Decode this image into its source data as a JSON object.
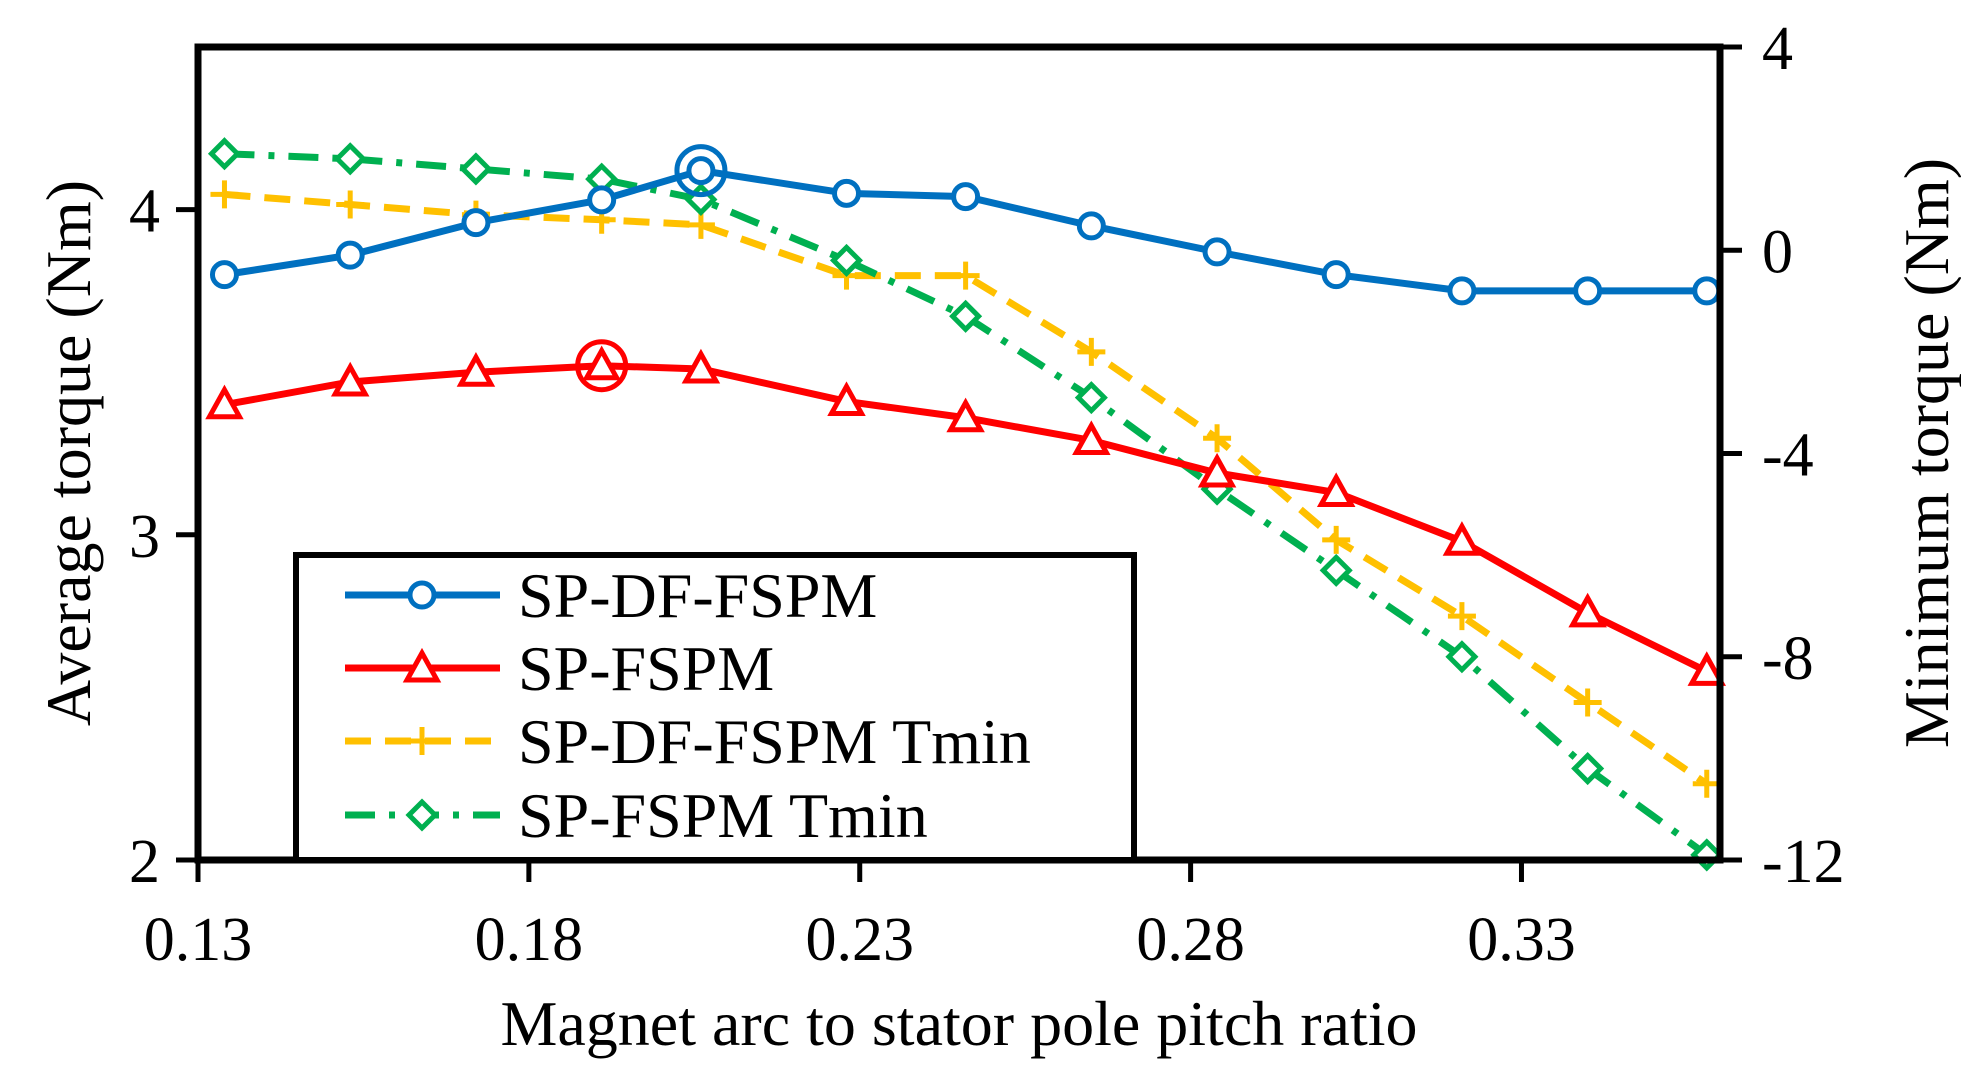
{
  "chart_data": {
    "type": "line",
    "title": "",
    "xlabel": "Magnet arc to stator pole pitch ratio",
    "ylabel": "Average torque (Nm)",
    "y2label": "Minimum torque (Nm)",
    "xlim": [
      0.13,
      0.36
    ],
    "ylim": [
      2,
      4.5
    ],
    "y2lim": [
      -12,
      4
    ],
    "xticks": [
      "0.13",
      "0.18",
      "0.23",
      "0.28",
      "0.33"
    ],
    "yticks": [
      "2",
      "3",
      "4"
    ],
    "y2ticks": [
      "4",
      "0",
      "-4",
      "-8",
      "-12"
    ],
    "legend_position": "bottom-left",
    "series": [
      {
        "name": "SP-DF-FSPM",
        "axis": "left",
        "color": "#0070C0",
        "line_style": "solid",
        "marker": "circle",
        "x": [
          0.134,
          0.153,
          0.172,
          0.191,
          0.206,
          0.228,
          0.246,
          0.265,
          0.284,
          0.302,
          0.321,
          0.34,
          0.358
        ],
        "y": [
          3.8,
          3.86,
          3.96,
          4.03,
          4.12,
          4.05,
          4.04,
          3.95,
          3.87,
          3.8,
          3.75,
          3.75,
          3.75
        ],
        "highlight_index": 4
      },
      {
        "name": "SP-FSPM",
        "axis": "left",
        "color": "#FF0000",
        "line_style": "solid",
        "marker": "triangle",
        "x": [
          0.134,
          0.153,
          0.172,
          0.191,
          0.206,
          0.228,
          0.246,
          0.265,
          0.284,
          0.302,
          0.321,
          0.34,
          0.358
        ],
        "y": [
          3.4,
          3.47,
          3.5,
          3.52,
          3.51,
          3.41,
          3.36,
          3.29,
          3.19,
          3.13,
          2.98,
          2.76,
          2.58
        ],
        "highlight_index": 3
      },
      {
        "name": "SP-DF-FSPM Tmin",
        "axis": "right",
        "color": "#FFC000",
        "line_style": "dashed",
        "marker": "plus",
        "x": [
          0.134,
          0.153,
          0.172,
          0.191,
          0.206,
          0.228,
          0.246,
          0.265,
          0.284,
          0.302,
          0.321,
          0.34,
          0.358
        ],
        "y": [
          1.1,
          0.9,
          0.7,
          0.6,
          0.5,
          -0.5,
          -0.5,
          -2.0,
          -3.7,
          -5.7,
          -7.2,
          -8.9,
          -10.5
        ]
      },
      {
        "name": "SP-FSPM Tmin",
        "axis": "right",
        "color": "#00B050",
        "line_style": "dash-dot",
        "marker": "diamond",
        "x": [
          0.134,
          0.153,
          0.172,
          0.191,
          0.206,
          0.228,
          0.246,
          0.265,
          0.284,
          0.302,
          0.321,
          0.34,
          0.358
        ],
        "y": [
          1.9,
          1.8,
          1.6,
          1.4,
          1.0,
          -0.2,
          -1.3,
          -2.9,
          -4.7,
          -6.3,
          -8.0,
          -10.2,
          -11.9
        ]
      }
    ]
  }
}
